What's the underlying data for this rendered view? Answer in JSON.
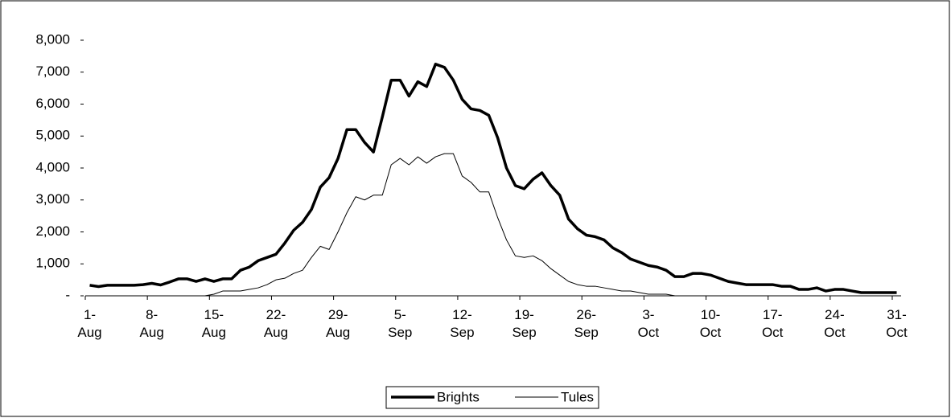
{
  "chart_data": {
    "type": "line",
    "categories": [
      "1-\nAug",
      null,
      null,
      null,
      null,
      null,
      null,
      "8-\nAug",
      null,
      null,
      null,
      null,
      null,
      null,
      "15-\nAug",
      null,
      null,
      null,
      null,
      null,
      null,
      "22-\nAug",
      null,
      null,
      null,
      null,
      null,
      null,
      "29-\nAug",
      null,
      null,
      null,
      null,
      null,
      null,
      "5-\nSep",
      null,
      null,
      null,
      null,
      null,
      null,
      "12-\nSep",
      null,
      null,
      null,
      null,
      null,
      null,
      "19-\nSep",
      null,
      null,
      null,
      null,
      null,
      null,
      "26-\nSep",
      null,
      null,
      null,
      null,
      null,
      null,
      "3-\nOct",
      null,
      null,
      null,
      null,
      null,
      null,
      "10-\nOct",
      null,
      null,
      null,
      null,
      null,
      null,
      "17-\nOct",
      null,
      null,
      null,
      null,
      null,
      null,
      "24-\nOct",
      null,
      null,
      null,
      null,
      null,
      null,
      "31-\nOct"
    ],
    "series": [
      {
        "name": "Brights",
        "color": "#000000",
        "width": 3.5,
        "values": [
          330,
          290,
          330,
          330,
          330,
          330,
          350,
          390,
          340,
          430,
          530,
          530,
          450,
          530,
          450,
          530,
          530,
          800,
          900,
          1100,
          1200,
          1300,
          1650,
          2050,
          2300,
          2700,
          3400,
          3700,
          4300,
          5200,
          5200,
          4800,
          4500,
          5600,
          6750,
          6750,
          6250,
          6700,
          6550,
          7250,
          7150,
          6750,
          6150,
          5850,
          5800,
          5650,
          4950,
          4000,
          3450,
          3350,
          3650,
          3850,
          3450,
          3150,
          2400,
          2100,
          1900,
          1850,
          1750,
          1500,
          1350,
          1150,
          1050,
          950,
          900,
          800,
          600,
          600,
          700,
          700,
          650,
          550,
          450,
          400,
          350,
          350,
          350,
          350,
          300,
          300,
          200,
          200,
          250,
          150,
          200,
          200,
          150,
          100,
          100,
          100,
          100,
          100
        ]
      },
      {
        "name": "Tules",
        "color": "#000000",
        "width": 1,
        "values": [
          null,
          null,
          null,
          null,
          null,
          null,
          null,
          null,
          null,
          null,
          null,
          0,
          0,
          0,
          50,
          150,
          150,
          150,
          200,
          250,
          350,
          500,
          550,
          700,
          800,
          1200,
          1550,
          1450,
          2000,
          2600,
          3100,
          3000,
          3150,
          3150,
          4100,
          4300,
          4100,
          4350,
          4150,
          4350,
          4450,
          4450,
          3750,
          3550,
          3250,
          3250,
          2450,
          1750,
          1250,
          1200,
          1250,
          1100,
          850,
          650,
          450,
          350,
          300,
          300,
          250,
          200,
          150,
          150,
          100,
          50,
          50,
          50,
          0,
          null,
          null,
          null,
          null,
          null,
          null,
          null,
          null,
          null,
          null,
          null,
          null,
          null,
          null,
          null,
          null,
          null,
          null,
          null,
          null,
          null,
          null,
          null,
          null,
          null
        ]
      }
    ],
    "ylim": [
      0,
      8000
    ],
    "yticks": [
      {
        "value": 0,
        "label": "-"
      },
      {
        "value": 1000,
        "label": "1,000"
      },
      {
        "value": 2000,
        "label": "2,000"
      },
      {
        "value": 3000,
        "label": "3,000"
      },
      {
        "value": 4000,
        "label": "4,000"
      },
      {
        "value": 5000,
        "label": "5,000"
      },
      {
        "value": 6000,
        "label": "6,000"
      },
      {
        "value": 7000,
        "label": "7,000"
      },
      {
        "value": 8000,
        "label": "8,000"
      }
    ],
    "legend": "bottom"
  }
}
